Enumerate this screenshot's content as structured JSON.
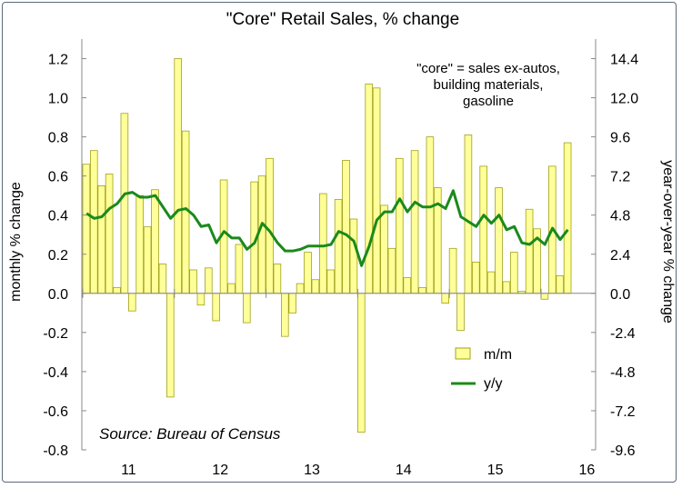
{
  "chart_data": {
    "type": "bar",
    "title": "\"Core\" Retail Sales, % change",
    "ylabel_left": "monthly % change",
    "ylabel_right": "year-over-year % change",
    "ylim_left": [
      -0.8,
      1.3
    ],
    "ylim_right": [
      -9.6,
      15.6
    ],
    "yticks_left": [
      "1.2",
      "1.0",
      "0.8",
      "0.6",
      "0.4",
      "0.2",
      "0.0",
      "-0.2",
      "-0.4",
      "-0.6",
      "-0.8"
    ],
    "yticks_right": [
      "14.4",
      "12.0",
      "9.6",
      "7.2",
      "4.8",
      "2.4",
      "0.0",
      "-2.4",
      "-4.8",
      "-7.2",
      "-9.6"
    ],
    "xticks": [
      "11",
      "12",
      "13",
      "14",
      "15",
      "16"
    ],
    "grid": false,
    "legend_position": "bottom-right",
    "annotation": "\"core\" = sales ex-autos, building materials, gasoline",
    "annotation_lines": [
      "\"core\" = sales ex-autos,",
      "building materials,",
      "gasoline"
    ],
    "source": "Source: Bureau of Census",
    "series": [
      {
        "name": "m/m",
        "kind": "bar",
        "color": "#ffff99",
        "edge_color": "#a0a020",
        "axis": "left",
        "values": [
          0.66,
          0.73,
          0.55,
          0.61,
          0.03,
          0.92,
          -0.09,
          0.5,
          0.34,
          0.53,
          0.15,
          -0.53,
          1.2,
          0.83,
          0.12,
          -0.06,
          0.13,
          -0.14,
          0.58,
          0.05,
          0.25,
          -0.15,
          0.57,
          0.6,
          0.69,
          0.15,
          -0.22,
          -0.1,
          0.05,
          0.21,
          0.07,
          0.51,
          0.12,
          0.48,
          0.68,
          0.38,
          -0.71,
          1.07,
          1.05,
          0.45,
          0.23,
          0.69,
          0.08,
          0.73,
          0.03,
          0.8,
          0.54,
          -0.05,
          0.23,
          -0.19,
          0.81,
          0.16,
          0.65,
          0.11,
          0.54,
          0.06,
          0.21,
          0.01,
          0.43,
          0.33,
          -0.03,
          0.65,
          0.09,
          0.77
        ]
      },
      {
        "name": "y/y",
        "kind": "line",
        "color": "#1a8a1a",
        "axis": "right",
        "values": [
          4.9,
          4.6,
          4.7,
          5.2,
          5.5,
          6.1,
          6.2,
          5.9,
          5.9,
          6.0,
          5.3,
          4.6,
          5.1,
          5.2,
          4.8,
          4.1,
          4.2,
          3.1,
          3.8,
          3.4,
          3.4,
          2.7,
          3.1,
          4.3,
          3.8,
          3.1,
          2.6,
          2.6,
          2.7,
          2.9,
          2.9,
          2.9,
          3.0,
          3.8,
          3.6,
          3.2,
          1.7,
          2.9,
          4.5,
          5.0,
          5.0,
          5.8,
          5.0,
          5.6,
          5.3,
          5.3,
          5.5,
          5.2,
          6.3,
          4.7,
          4.4,
          4.1,
          4.8,
          4.3,
          4.8,
          3.9,
          4.1,
          3.1,
          3.0,
          3.4,
          3.0,
          4.0,
          3.3,
          3.9
        ]
      }
    ]
  }
}
